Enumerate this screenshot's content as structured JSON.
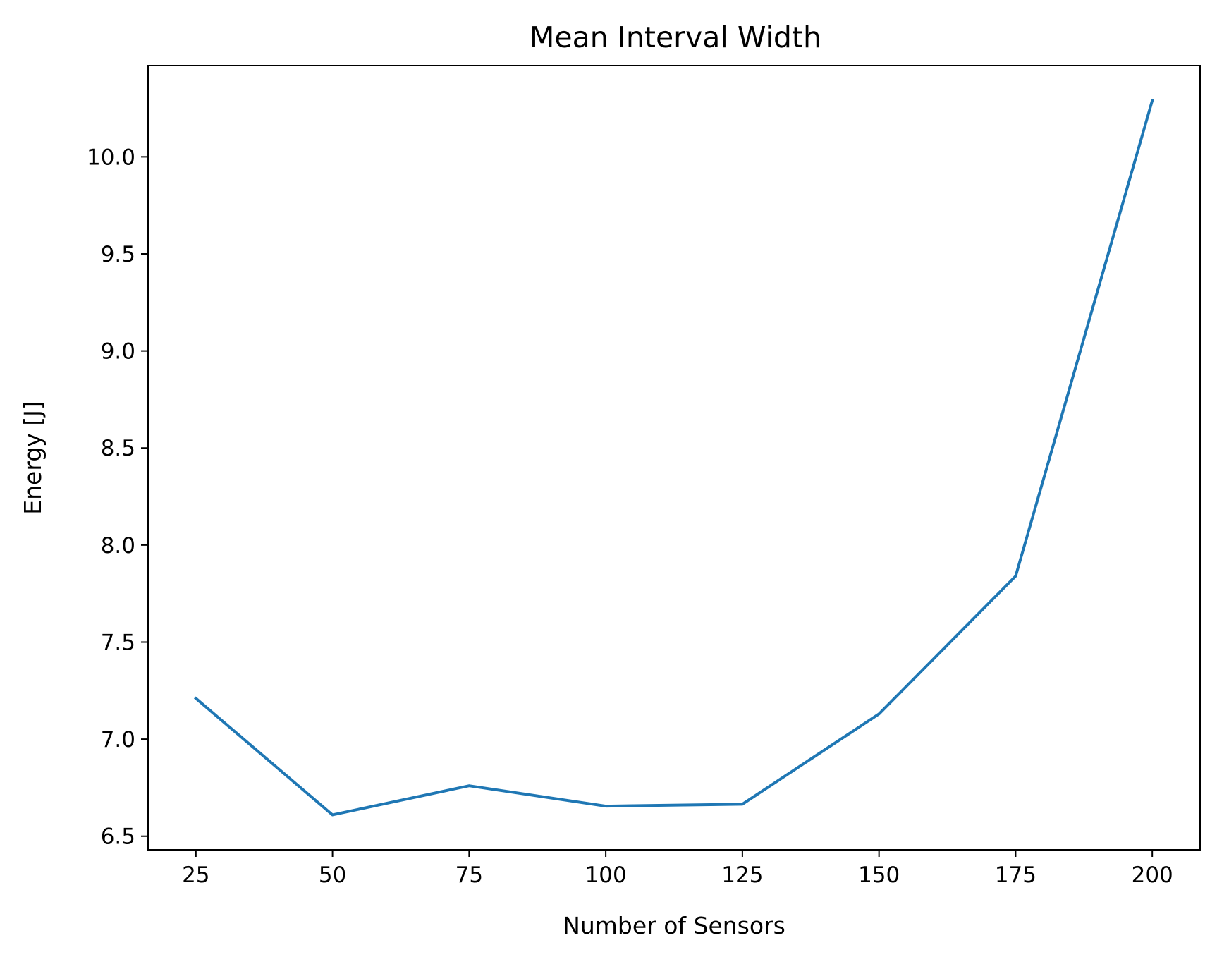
{
  "chart_data": {
    "type": "line",
    "title": "Mean Interval Width",
    "xlabel": "Number of Sensors",
    "ylabel": "Energy [J]",
    "x": [
      25,
      50,
      75,
      100,
      125,
      150,
      175,
      200
    ],
    "series": [
      {
        "values": [
          7.21,
          6.61,
          6.76,
          6.655,
          6.665,
          7.13,
          7.84,
          10.29
        ],
        "color": "#1f77b4"
      }
    ],
    "xlim": [
      16.25,
      208.75
    ],
    "ylim": [
      6.43,
      10.47
    ],
    "xticks": [
      25,
      50,
      75,
      100,
      125,
      150,
      175,
      200
    ],
    "xtick_labels": [
      "25",
      "50",
      "75",
      "100",
      "125",
      "150",
      "175",
      "200"
    ],
    "yticks": [
      6.5,
      7.0,
      7.5,
      8.0,
      8.5,
      9.0,
      9.5,
      10.0
    ],
    "ytick_labels": [
      "6.5",
      "7.0",
      "7.5",
      "8.0",
      "8.5",
      "9.0",
      "9.5",
      "10.0"
    ],
    "grid": false,
    "legend": "none"
  }
}
